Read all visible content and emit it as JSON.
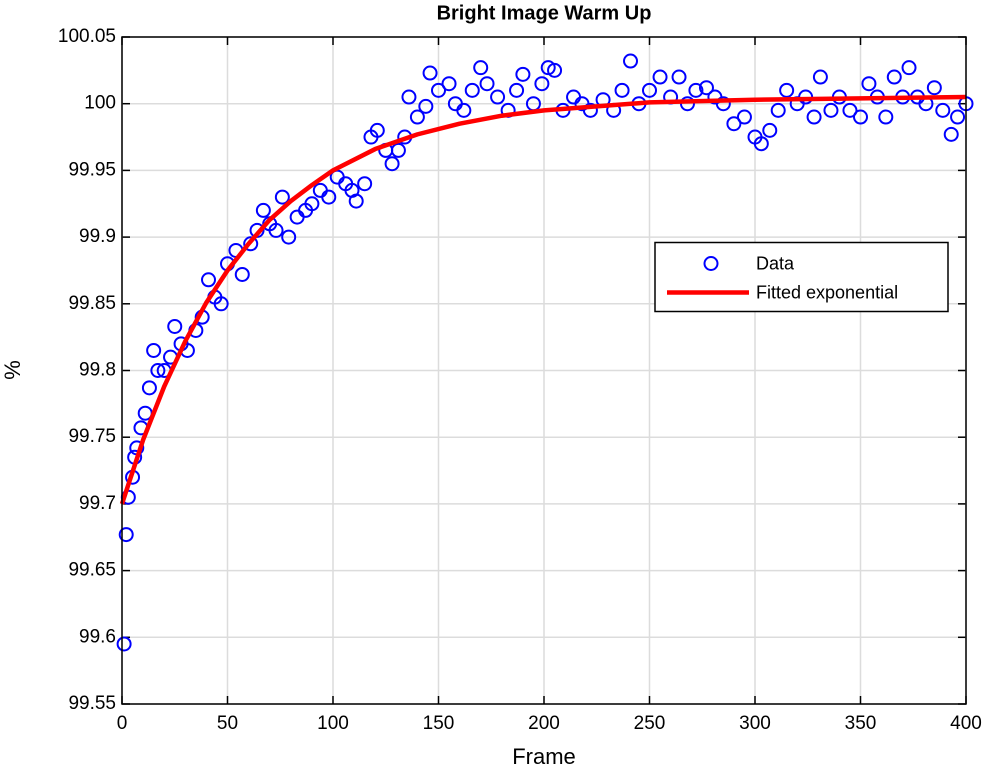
{
  "chart_data": {
    "type": "scatter",
    "title": "Bright Image Warm Up",
    "x_label": "Frame",
    "y_label": "%",
    "xlim": [
      0,
      400
    ],
    "ylim": [
      99.55,
      100.05
    ],
    "xticks": [
      0,
      50,
      100,
      150,
      200,
      250,
      300,
      350,
      400
    ],
    "yticks": [
      99.55,
      99.6,
      99.65,
      99.7,
      99.75,
      99.8,
      99.85,
      99.9,
      99.95,
      100,
      100.05
    ],
    "grid": true,
    "legend": "right",
    "series": [
      {
        "name": "Data",
        "color": "#0000ff",
        "marker": "circle",
        "x": [
          1,
          2,
          3,
          5,
          6,
          7,
          9,
          11,
          13,
          15,
          17,
          20,
          23,
          25,
          28,
          31,
          35,
          38,
          41,
          44,
          47,
          50,
          54,
          57,
          61,
          64,
          67,
          70,
          73,
          76,
          79,
          83,
          87,
          90,
          94,
          98,
          102,
          106,
          109,
          111,
          115,
          118,
          121,
          125,
          128,
          131,
          134,
          136,
          140,
          144,
          146,
          150,
          155,
          158,
          162,
          166,
          170,
          173,
          178,
          183,
          187,
          190,
          195,
          199,
          202,
          205,
          209,
          214,
          218,
          222,
          228,
          233,
          237,
          241,
          245,
          250,
          255,
          260,
          264,
          268,
          272,
          277,
          281,
          285,
          290,
          295,
          300,
          303,
          307,
          311,
          315,
          320,
          324,
          328,
          331,
          336,
          340,
          345,
          350,
          354,
          358,
          362,
          366,
          370,
          373,
          377,
          381,
          385,
          389,
          393,
          396,
          400
        ],
        "values": [
          99.595,
          99.677,
          99.705,
          99.72,
          99.735,
          99.742,
          99.757,
          99.768,
          99.787,
          99.815,
          99.8,
          99.8,
          99.81,
          99.833,
          99.82,
          99.815,
          99.83,
          99.84,
          99.868,
          99.855,
          99.85,
          99.88,
          99.89,
          99.872,
          99.895,
          99.905,
          99.92,
          99.91,
          99.905,
          99.93,
          99.9,
          99.915,
          99.92,
          99.925,
          99.935,
          99.93,
          99.945,
          99.94,
          99.935,
          99.927,
          99.94,
          99.975,
          99.98,
          99.965,
          99.955,
          99.965,
          99.975,
          100.005,
          99.99,
          99.998,
          100.023,
          100.01,
          100.015,
          100.0,
          99.995,
          100.01,
          100.027,
          100.015,
          100.005,
          99.995,
          100.01,
          100.022,
          100.0,
          100.015,
          100.027,
          100.025,
          99.995,
          100.005,
          100.0,
          99.995,
          100.003,
          99.995,
          100.01,
          100.032,
          100.0,
          100.01,
          100.02,
          100.005,
          100.02,
          100.0,
          100.01,
          100.012,
          100.005,
          100.0,
          99.985,
          99.99,
          99.975,
          99.97,
          99.98,
          99.995,
          100.01,
          100.0,
          100.005,
          99.99,
          100.02,
          99.995,
          100.005,
          99.995,
          99.99,
          100.015,
          100.005,
          99.99,
          100.02,
          100.005,
          100.027,
          100.005,
          100.0,
          100.012,
          99.995,
          99.977,
          99.99,
          100.0
        ]
      },
      {
        "name": "Fitted exponential",
        "color": "#ff0000",
        "marker": "line",
        "x": [
          0,
          10,
          20,
          30,
          40,
          50,
          60,
          70,
          80,
          90,
          100,
          120,
          140,
          160,
          180,
          200,
          250,
          300,
          350,
          400
        ],
        "values": [
          99.7,
          99.748,
          99.788,
          99.822,
          99.851,
          99.875,
          99.895,
          99.913,
          99.927,
          99.939,
          99.95,
          99.966,
          99.977,
          99.985,
          99.991,
          99.995,
          100.001,
          100.003,
          100.004,
          100.005
        ]
      }
    ]
  }
}
